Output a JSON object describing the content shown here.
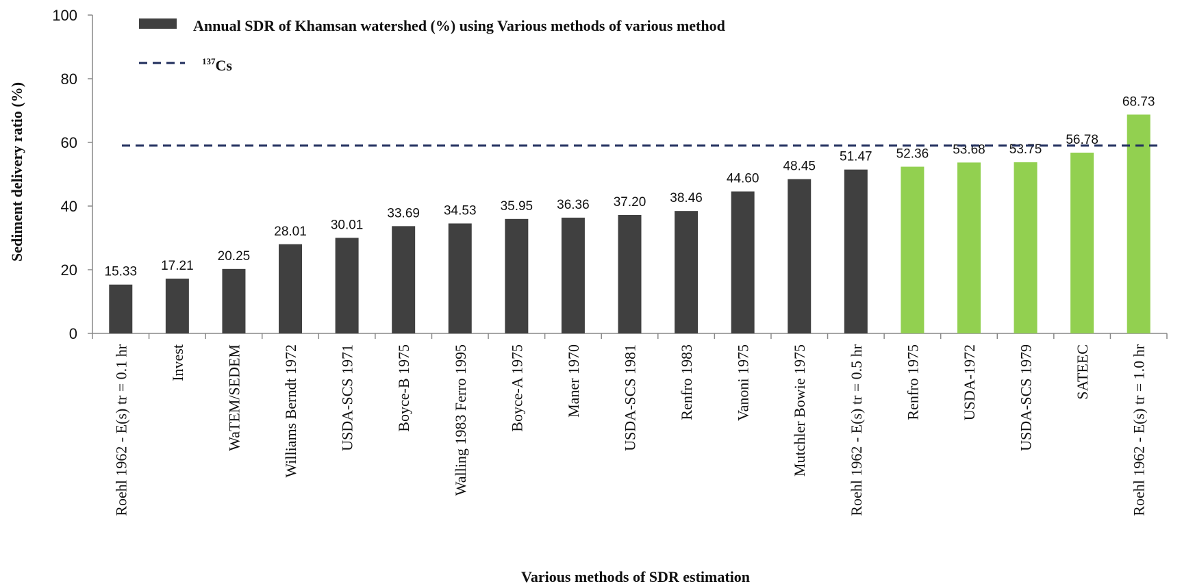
{
  "chart_data": {
    "type": "bar",
    "xlabel": "Various methods of SDR estimation",
    "ylabel": "Sediment delivery ratio (%)",
    "ylim": [
      0,
      100
    ],
    "yticks": [
      0,
      20,
      40,
      60,
      80,
      100
    ],
    "grid": false,
    "legend_placement": "top-left",
    "categories": [
      "Roehl 1962 - E(s) tr = 0.1 hr",
      "Invest",
      "WaTEM/SEDEM",
      "Williams Berndt 1972",
      "USDA-SCS 1971",
      "Boyce-B 1975",
      "Walling 1983 Ferro 1995",
      "Boyce-A 1975",
      "Maner 1970",
      "USDA-SCS 1981",
      "Renfro 1983",
      "Vanoni 1975",
      "Mutchler Bowie 1975",
      "Roehl 1962 - E(s) tr = 0.5 hr",
      "Renfro 1975",
      "USDA-1972",
      "USDA-SCS 1979",
      "SATEEC",
      "Roehl 1962 - E(s) tr = 1.0 hr"
    ],
    "series": [
      {
        "name": "Annual SDR of Khamsan watershed (%) using Various methods of various method",
        "values": [
          15.33,
          17.21,
          20.25,
          28.01,
          30.01,
          33.69,
          34.53,
          35.95,
          36.36,
          37.2,
          38.46,
          44.6,
          48.45,
          51.47,
          52.36,
          53.68,
          53.75,
          56.78,
          68.73
        ],
        "labels": [
          "15.33",
          "17.21",
          "20.25",
          "28.01",
          "30.01",
          "33.69",
          "34.53",
          "35.95",
          "36.36",
          "37.20",
          "38.46",
          "44.60",
          "48.45",
          "51.47",
          "52.36",
          "53.68",
          "53.75",
          "56.78",
          "68.73"
        ],
        "colors": [
          "#404040",
          "#404040",
          "#404040",
          "#404040",
          "#404040",
          "#404040",
          "#404040",
          "#404040",
          "#404040",
          "#404040",
          "#404040",
          "#404040",
          "#404040",
          "#404040",
          "#92d050",
          "#92d050",
          "#92d050",
          "#92d050",
          "#92d050"
        ]
      }
    ],
    "reference_line": {
      "name_prefix": "137",
      "name_main": "Cs",
      "value": 59,
      "style": "dashed",
      "color": "#1f2d5c"
    }
  },
  "colors": {
    "bar_default": "#404040",
    "bar_highlight": "#92d050",
    "axis": "#888888"
  }
}
